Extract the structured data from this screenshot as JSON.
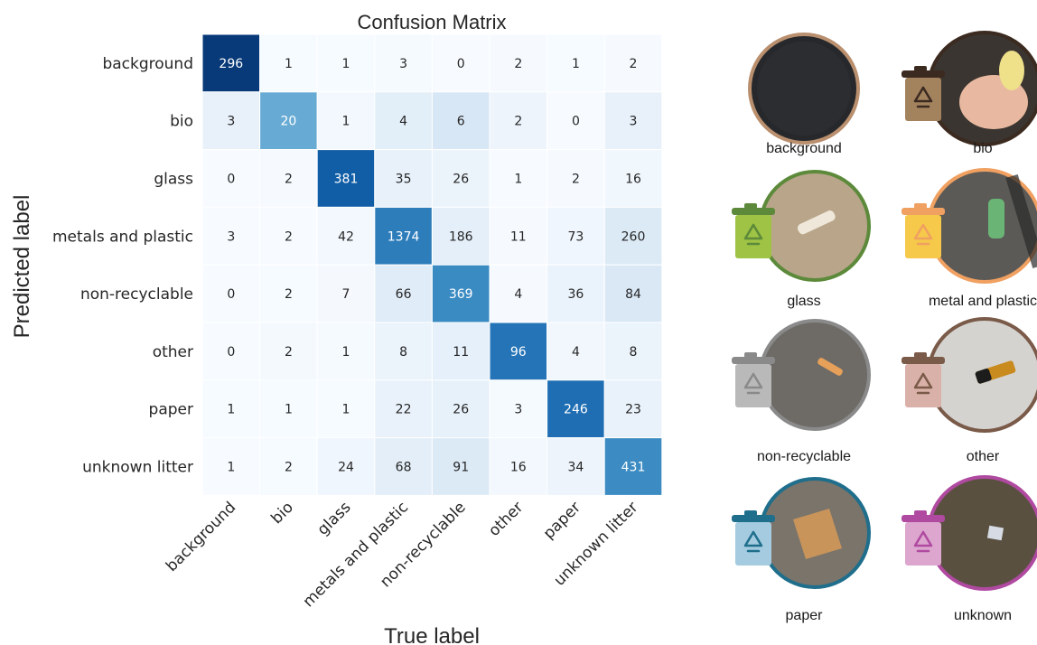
{
  "chart_data": {
    "type": "heatmap",
    "title": "Confusion Matrix",
    "xlabel": "True label",
    "ylabel": "Predicted label",
    "x_categories": [
      "background",
      "bio",
      "glass",
      "metals and plastic",
      "non-recyclable",
      "other",
      "paper",
      "unknown litter"
    ],
    "y_categories": [
      "background",
      "bio",
      "glass",
      "metals and plastic",
      "non-recyclable",
      "other",
      "paper",
      "unknown litter"
    ],
    "matrix": [
      [
        296,
        1,
        1,
        3,
        0,
        2,
        1,
        2
      ],
      [
        3,
        20,
        1,
        4,
        6,
        2,
        0,
        3
      ],
      [
        0,
        2,
        381,
        35,
        26,
        1,
        2,
        16
      ],
      [
        3,
        2,
        42,
        1374,
        186,
        11,
        73,
        260
      ],
      [
        0,
        2,
        7,
        66,
        369,
        4,
        36,
        84
      ],
      [
        0,
        2,
        1,
        8,
        11,
        96,
        4,
        8
      ],
      [
        1,
        1,
        1,
        22,
        26,
        3,
        246,
        23
      ],
      [
        1,
        2,
        24,
        68,
        91,
        16,
        34,
        431
      ]
    ],
    "colormap": "Blues",
    "normalization": "row"
  },
  "legend_panel": {
    "items": [
      {
        "label": "background",
        "ring_color": "#b98f6e",
        "bin_color": null,
        "photo": "dark-asphalt",
        "has_bin": false
      },
      {
        "label": "bio",
        "ring_color": "#3b2a20",
        "bin_color": "#a3825e",
        "photo": "hand-holding-apple-core",
        "has_bin": true
      },
      {
        "label": "glass",
        "ring_color": "#5c8a3a",
        "bin_color": "#9ec345",
        "photo": "bottle-on-sand",
        "has_bin": true
      },
      {
        "label": "metal and plastic",
        "ring_color": "#f0a060",
        "bin_color": "#f6c94a",
        "photo": "plastic-bottle-on-pavement",
        "has_bin": true
      },
      {
        "label": "non-recyclable",
        "ring_color": "#8a8a8a",
        "bin_color": "#b9b9b9",
        "photo": "cigarette-on-gravel",
        "has_bin": true
      },
      {
        "label": "other",
        "ring_color": "#7a5a48",
        "bin_color": "#d9b1a8",
        "photo": "battery-on-gray",
        "has_bin": true
      },
      {
        "label": "paper",
        "ring_color": "#1e6e8c",
        "bin_color": "#a4cbe0",
        "photo": "paper-wrapper",
        "has_bin": true
      },
      {
        "label": "unknown",
        "ring_color": "#b04aa0",
        "bin_color": "#dca6cf",
        "photo": "litter-on-soil",
        "has_bin": true
      }
    ]
  }
}
